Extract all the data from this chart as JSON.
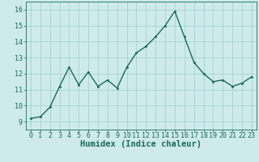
{
  "x": [
    0,
    1,
    2,
    3,
    4,
    5,
    6,
    7,
    8,
    9,
    10,
    11,
    12,
    13,
    14,
    15,
    16,
    17,
    18,
    19,
    20,
    21,
    22,
    23
  ],
  "y": [
    9.2,
    9.3,
    9.9,
    11.2,
    12.4,
    11.3,
    12.1,
    11.2,
    11.6,
    11.1,
    12.4,
    13.3,
    13.7,
    14.3,
    15.0,
    15.9,
    14.3,
    12.7,
    12.0,
    11.5,
    11.6,
    11.2,
    11.4,
    11.8
  ],
  "line_color": "#1a6b5a",
  "marker_color": "#1a6b5a",
  "bg_color": "#ceeaea",
  "grid_color": "#9ecece",
  "xlabel": "Humidex (Indice chaleur)",
  "xlabel_fontsize": 7.5,
  "ylim": [
    8.5,
    16.5
  ],
  "xlim": [
    -0.5,
    23.5
  ],
  "yticks": [
    9,
    10,
    11,
    12,
    13,
    14,
    15,
    16
  ],
  "xticks": [
    0,
    1,
    2,
    3,
    4,
    5,
    6,
    7,
    8,
    9,
    10,
    11,
    12,
    13,
    14,
    15,
    16,
    17,
    18,
    19,
    20,
    21,
    22,
    23
  ],
  "tick_fontsize": 6.0,
  "linewidth": 1.0,
  "markersize": 2.2
}
